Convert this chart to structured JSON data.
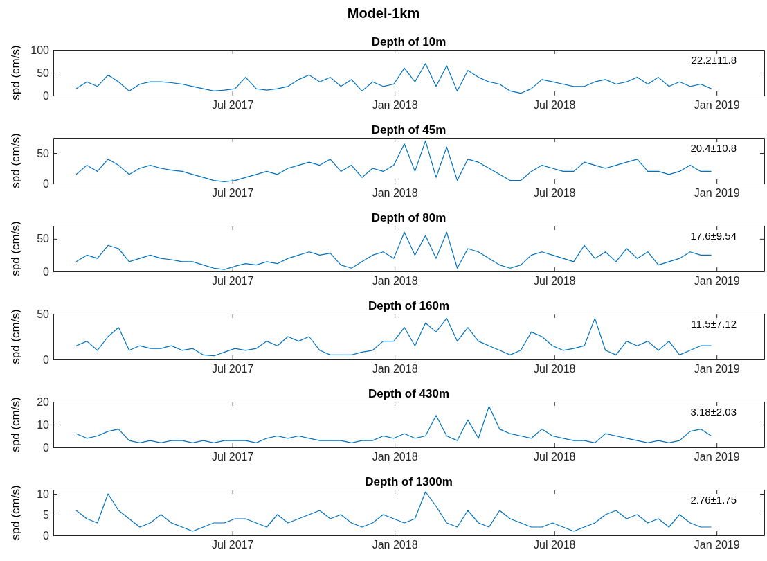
{
  "chart_data": [
    {
      "type": "other",
      "title": "Model-1km"
    },
    {
      "type": "line",
      "title": "Depth of 10m",
      "ylabel": "spd (cm/s)",
      "annotations": [
        "22.2±11.8"
      ],
      "xlim": [
        "2016-12-10",
        "2019-02-24"
      ],
      "xticks": [
        {
          "value": "2017-07-01",
          "label": "Jul 2017"
        },
        {
          "value": "2018-01-01",
          "label": "Jan 2018"
        },
        {
          "value": "2018-07-01",
          "label": "Jul 2018"
        },
        {
          "value": "2019-01-01",
          "label": "Jan 2019"
        }
      ],
      "ylim": [
        0,
        100
      ],
      "yticks": [
        0,
        50,
        100
      ],
      "x": [
        "2017-01-05",
        "2017-01-17",
        "2017-01-29",
        "2017-02-10",
        "2017-02-22",
        "2017-03-06",
        "2017-03-18",
        "2017-03-30",
        "2017-04-11",
        "2017-04-23",
        "2017-05-05",
        "2017-05-17",
        "2017-05-29",
        "2017-06-10",
        "2017-06-22",
        "2017-07-04",
        "2017-07-16",
        "2017-07-28",
        "2017-08-09",
        "2017-08-21",
        "2017-09-02",
        "2017-09-14",
        "2017-09-26",
        "2017-10-08",
        "2017-10-20",
        "2017-11-01",
        "2017-11-13",
        "2017-11-25",
        "2017-12-07",
        "2017-12-19",
        "2017-12-31",
        "2018-01-12",
        "2018-01-24",
        "2018-02-05",
        "2018-02-17",
        "2018-03-01",
        "2018-03-13",
        "2018-03-25",
        "2018-04-06",
        "2018-04-18",
        "2018-04-30",
        "2018-05-12",
        "2018-05-24",
        "2018-06-05",
        "2018-06-17",
        "2018-06-29",
        "2018-07-11",
        "2018-07-23",
        "2018-08-04",
        "2018-08-16",
        "2018-08-28",
        "2018-09-09",
        "2018-09-21",
        "2018-10-03",
        "2018-10-15",
        "2018-10-27",
        "2018-11-08",
        "2018-11-20",
        "2018-12-02",
        "2018-12-14",
        "2018-12-26"
      ],
      "series": [
        {
          "color": "#0072bd",
          "values": [
            15,
            30,
            20,
            45,
            30,
            10,
            25,
            30,
            30,
            28,
            25,
            20,
            15,
            10,
            12,
            15,
            40,
            15,
            12,
            15,
            20,
            35,
            45,
            30,
            40,
            20,
            35,
            10,
            30,
            20,
            25,
            60,
            30,
            70,
            20,
            65,
            10,
            55,
            40,
            30,
            25,
            10,
            5,
            15,
            35,
            30,
            25,
            20,
            20,
            30,
            35,
            25,
            30,
            40,
            25,
            40,
            20,
            30,
            20,
            25,
            15
          ]
        }
      ]
    },
    {
      "type": "line",
      "title": "Depth of 45m",
      "ylabel": "spd (cm/s)",
      "annotations": [
        "20.4±10.8"
      ],
      "xlim": [
        "2016-12-10",
        "2019-02-24"
      ],
      "xticks": [
        {
          "value": "2017-07-01",
          "label": "Jul 2017"
        },
        {
          "value": "2018-01-01",
          "label": "Jan 2018"
        },
        {
          "value": "2018-07-01",
          "label": "Jul 2018"
        },
        {
          "value": "2019-01-01",
          "label": "Jan 2019"
        }
      ],
      "ylim": [
        0,
        75
      ],
      "yticks": [
        0,
        50
      ],
      "x": [
        "2017-01-05",
        "2017-01-17",
        "2017-01-29",
        "2017-02-10",
        "2017-02-22",
        "2017-03-06",
        "2017-03-18",
        "2017-03-30",
        "2017-04-11",
        "2017-04-23",
        "2017-05-05",
        "2017-05-17",
        "2017-05-29",
        "2017-06-10",
        "2017-06-22",
        "2017-07-04",
        "2017-07-16",
        "2017-07-28",
        "2017-08-09",
        "2017-08-21",
        "2017-09-02",
        "2017-09-14",
        "2017-09-26",
        "2017-10-08",
        "2017-10-20",
        "2017-11-01",
        "2017-11-13",
        "2017-11-25",
        "2017-12-07",
        "2017-12-19",
        "2017-12-31",
        "2018-01-12",
        "2018-01-24",
        "2018-02-05",
        "2018-02-17",
        "2018-03-01",
        "2018-03-13",
        "2018-03-25",
        "2018-04-06",
        "2018-04-18",
        "2018-04-30",
        "2018-05-12",
        "2018-05-24",
        "2018-06-05",
        "2018-06-17",
        "2018-06-29",
        "2018-07-11",
        "2018-07-23",
        "2018-08-04",
        "2018-08-16",
        "2018-08-28",
        "2018-09-09",
        "2018-09-21",
        "2018-10-03",
        "2018-10-15",
        "2018-10-27",
        "2018-11-08",
        "2018-11-20",
        "2018-12-02",
        "2018-12-14",
        "2018-12-26"
      ],
      "series": [
        {
          "color": "#0072bd",
          "values": [
            15,
            30,
            20,
            40,
            30,
            15,
            25,
            30,
            25,
            22,
            20,
            15,
            10,
            5,
            3,
            5,
            10,
            15,
            20,
            15,
            25,
            30,
            35,
            30,
            40,
            20,
            30,
            10,
            25,
            20,
            30,
            65,
            20,
            70,
            10,
            60,
            5,
            40,
            35,
            25,
            15,
            5,
            5,
            20,
            30,
            25,
            20,
            20,
            35,
            30,
            25,
            30,
            35,
            40,
            20,
            20,
            15,
            20,
            30,
            20,
            20
          ]
        }
      ]
    },
    {
      "type": "line",
      "title": "Depth of 80m",
      "ylabel": "spd (cm/s)",
      "annotations": [
        "17.6±9.54"
      ],
      "xlim": [
        "2016-12-10",
        "2019-02-24"
      ],
      "xticks": [
        {
          "value": "2017-07-01",
          "label": "Jul 2017"
        },
        {
          "value": "2018-01-01",
          "label": "Jan 2018"
        },
        {
          "value": "2018-07-01",
          "label": "Jul 2018"
        },
        {
          "value": "2019-01-01",
          "label": "Jan 2019"
        }
      ],
      "ylim": [
        0,
        70
      ],
      "yticks": [
        0,
        50
      ],
      "x": [
        "2017-01-05",
        "2017-01-17",
        "2017-01-29",
        "2017-02-10",
        "2017-02-22",
        "2017-03-06",
        "2017-03-18",
        "2017-03-30",
        "2017-04-11",
        "2017-04-23",
        "2017-05-05",
        "2017-05-17",
        "2017-05-29",
        "2017-06-10",
        "2017-06-22",
        "2017-07-04",
        "2017-07-16",
        "2017-07-28",
        "2017-08-09",
        "2017-08-21",
        "2017-09-02",
        "2017-09-14",
        "2017-09-26",
        "2017-10-08",
        "2017-10-20",
        "2017-11-01",
        "2017-11-13",
        "2017-11-25",
        "2017-12-07",
        "2017-12-19",
        "2017-12-31",
        "2018-01-12",
        "2018-01-24",
        "2018-02-05",
        "2018-02-17",
        "2018-03-01",
        "2018-03-13",
        "2018-03-25",
        "2018-04-06",
        "2018-04-18",
        "2018-04-30",
        "2018-05-12",
        "2018-05-24",
        "2018-06-05",
        "2018-06-17",
        "2018-06-29",
        "2018-07-11",
        "2018-07-23",
        "2018-08-04",
        "2018-08-16",
        "2018-08-28",
        "2018-09-09",
        "2018-09-21",
        "2018-10-03",
        "2018-10-15",
        "2018-10-27",
        "2018-11-08",
        "2018-11-20",
        "2018-12-02",
        "2018-12-14",
        "2018-12-26"
      ],
      "series": [
        {
          "color": "#0072bd",
          "values": [
            15,
            25,
            20,
            40,
            35,
            15,
            20,
            25,
            20,
            18,
            15,
            15,
            10,
            5,
            3,
            8,
            12,
            10,
            15,
            12,
            20,
            25,
            30,
            25,
            28,
            10,
            5,
            15,
            25,
            30,
            20,
            60,
            25,
            55,
            20,
            60,
            5,
            35,
            30,
            20,
            10,
            5,
            10,
            25,
            30,
            25,
            20,
            15,
            40,
            20,
            30,
            15,
            35,
            20,
            30,
            10,
            15,
            20,
            30,
            25,
            25
          ]
        }
      ]
    },
    {
      "type": "line",
      "title": "Depth of 160m",
      "ylabel": "spd (cm/s)",
      "annotations": [
        "11.5±7.12"
      ],
      "xlim": [
        "2016-12-10",
        "2019-02-24"
      ],
      "xticks": [
        {
          "value": "2017-07-01",
          "label": "Jul 2017"
        },
        {
          "value": "2018-01-01",
          "label": "Jan 2018"
        },
        {
          "value": "2018-07-01",
          "label": "Jul 2018"
        },
        {
          "value": "2019-01-01",
          "label": "Jan 2019"
        }
      ],
      "ylim": [
        0,
        50
      ],
      "yticks": [
        0,
        50
      ],
      "x": [
        "2017-01-05",
        "2017-01-17",
        "2017-01-29",
        "2017-02-10",
        "2017-02-22",
        "2017-03-06",
        "2017-03-18",
        "2017-03-30",
        "2017-04-11",
        "2017-04-23",
        "2017-05-05",
        "2017-05-17",
        "2017-05-29",
        "2017-06-10",
        "2017-06-22",
        "2017-07-04",
        "2017-07-16",
        "2017-07-28",
        "2017-08-09",
        "2017-08-21",
        "2017-09-02",
        "2017-09-14",
        "2017-09-26",
        "2017-10-08",
        "2017-10-20",
        "2017-11-01",
        "2017-11-13",
        "2017-11-25",
        "2017-12-07",
        "2017-12-19",
        "2017-12-31",
        "2018-01-12",
        "2018-01-24",
        "2018-02-05",
        "2018-02-17",
        "2018-03-01",
        "2018-03-13",
        "2018-03-25",
        "2018-04-06",
        "2018-04-18",
        "2018-04-30",
        "2018-05-12",
        "2018-05-24",
        "2018-06-05",
        "2018-06-17",
        "2018-06-29",
        "2018-07-11",
        "2018-07-23",
        "2018-08-04",
        "2018-08-16",
        "2018-08-28",
        "2018-09-09",
        "2018-09-21",
        "2018-10-03",
        "2018-10-15",
        "2018-10-27",
        "2018-11-08",
        "2018-11-20",
        "2018-12-02",
        "2018-12-14",
        "2018-12-26"
      ],
      "series": [
        {
          "color": "#0072bd",
          "values": [
            15,
            20,
            10,
            25,
            35,
            10,
            15,
            12,
            12,
            15,
            10,
            12,
            5,
            4,
            8,
            12,
            10,
            12,
            20,
            15,
            25,
            20,
            25,
            10,
            5,
            5,
            5,
            8,
            10,
            20,
            20,
            35,
            15,
            40,
            30,
            45,
            20,
            35,
            20,
            15,
            10,
            5,
            10,
            30,
            25,
            15,
            10,
            12,
            15,
            45,
            10,
            5,
            20,
            15,
            20,
            10,
            20,
            5,
            10,
            15,
            15
          ]
        }
      ]
    },
    {
      "type": "line",
      "title": "Depth of 430m",
      "ylabel": "spd (cm/s)",
      "annotations": [
        "3.18±2.03"
      ],
      "xlim": [
        "2016-12-10",
        "2019-02-24"
      ],
      "xticks": [
        {
          "value": "2017-07-01",
          "label": "Jul 2017"
        },
        {
          "value": "2018-01-01",
          "label": "Jan 2018"
        },
        {
          "value": "2018-07-01",
          "label": "Jul 2018"
        },
        {
          "value": "2019-01-01",
          "label": "Jan 2019"
        }
      ],
      "ylim": [
        0,
        20
      ],
      "yticks": [
        0,
        10,
        20
      ],
      "x": [
        "2017-01-05",
        "2017-01-17",
        "2017-01-29",
        "2017-02-10",
        "2017-02-22",
        "2017-03-06",
        "2017-03-18",
        "2017-03-30",
        "2017-04-11",
        "2017-04-23",
        "2017-05-05",
        "2017-05-17",
        "2017-05-29",
        "2017-06-10",
        "2017-06-22",
        "2017-07-04",
        "2017-07-16",
        "2017-07-28",
        "2017-08-09",
        "2017-08-21",
        "2017-09-02",
        "2017-09-14",
        "2017-09-26",
        "2017-10-08",
        "2017-10-20",
        "2017-11-01",
        "2017-11-13",
        "2017-11-25",
        "2017-12-07",
        "2017-12-19",
        "2017-12-31",
        "2018-01-12",
        "2018-01-24",
        "2018-02-05",
        "2018-02-17",
        "2018-03-01",
        "2018-03-13",
        "2018-03-25",
        "2018-04-06",
        "2018-04-18",
        "2018-04-30",
        "2018-05-12",
        "2018-05-24",
        "2018-06-05",
        "2018-06-17",
        "2018-06-29",
        "2018-07-11",
        "2018-07-23",
        "2018-08-04",
        "2018-08-16",
        "2018-08-28",
        "2018-09-09",
        "2018-09-21",
        "2018-10-03",
        "2018-10-15",
        "2018-10-27",
        "2018-11-08",
        "2018-11-20",
        "2018-12-02",
        "2018-12-14",
        "2018-12-26"
      ],
      "series": [
        {
          "color": "#0072bd",
          "values": [
            6,
            4,
            5,
            7,
            8,
            3,
            2,
            3,
            2,
            3,
            3,
            2,
            3,
            2,
            3,
            3,
            3,
            2,
            4,
            5,
            4,
            5,
            4,
            3,
            3,
            3,
            2,
            3,
            3,
            5,
            4,
            6,
            4,
            5,
            14,
            5,
            3,
            12,
            4,
            18,
            8,
            6,
            5,
            4,
            8,
            5,
            4,
            3,
            3,
            2,
            6,
            5,
            4,
            3,
            2,
            3,
            2,
            3,
            7,
            8,
            5
          ]
        }
      ]
    },
    {
      "type": "line",
      "title": "Depth of 1300m",
      "ylabel": "spd (cm/s)",
      "annotations": [
        "2.76±1.75"
      ],
      "xlim": [
        "2016-12-10",
        "2019-02-24"
      ],
      "xticks": [
        {
          "value": "2017-07-01",
          "label": "Jul 2017"
        },
        {
          "value": "2018-01-01",
          "label": "Jan 2018"
        },
        {
          "value": "2018-07-01",
          "label": "Jul 2018"
        },
        {
          "value": "2019-01-01",
          "label": "Jan 2019"
        }
      ],
      "ylim": [
        0,
        11
      ],
      "yticks": [
        0,
        5,
        10
      ],
      "x": [
        "2017-01-05",
        "2017-01-17",
        "2017-01-29",
        "2017-02-10",
        "2017-02-22",
        "2017-03-06",
        "2017-03-18",
        "2017-03-30",
        "2017-04-11",
        "2017-04-23",
        "2017-05-05",
        "2017-05-17",
        "2017-05-29",
        "2017-06-10",
        "2017-06-22",
        "2017-07-04",
        "2017-07-16",
        "2017-07-28",
        "2017-08-09",
        "2017-08-21",
        "2017-09-02",
        "2017-09-14",
        "2017-09-26",
        "2017-10-08",
        "2017-10-20",
        "2017-11-01",
        "2017-11-13",
        "2017-11-25",
        "2017-12-07",
        "2017-12-19",
        "2017-12-31",
        "2018-01-12",
        "2018-01-24",
        "2018-02-05",
        "2018-02-17",
        "2018-03-01",
        "2018-03-13",
        "2018-03-25",
        "2018-04-06",
        "2018-04-18",
        "2018-04-30",
        "2018-05-12",
        "2018-05-24",
        "2018-06-05",
        "2018-06-17",
        "2018-06-29",
        "2018-07-11",
        "2018-07-23",
        "2018-08-04",
        "2018-08-16",
        "2018-08-28",
        "2018-09-09",
        "2018-09-21",
        "2018-10-03",
        "2018-10-15",
        "2018-10-27",
        "2018-11-08",
        "2018-11-20",
        "2018-12-02",
        "2018-12-14",
        "2018-12-26"
      ],
      "series": [
        {
          "color": "#0072bd",
          "values": [
            6,
            4,
            3,
            10,
            6,
            4,
            2,
            3,
            5,
            3,
            2,
            1,
            2,
            3,
            3,
            4,
            4,
            3,
            2,
            5,
            3,
            4,
            5,
            6,
            4,
            5,
            3,
            2,
            3,
            5,
            4,
            3,
            4,
            10.5,
            7,
            3,
            2,
            6,
            3,
            2,
            6,
            4,
            3,
            2,
            2,
            3,
            2,
            1,
            2,
            3,
            5,
            6,
            4,
            5,
            3,
            4,
            2,
            5,
            3,
            2,
            2
          ]
        }
      ]
    }
  ]
}
